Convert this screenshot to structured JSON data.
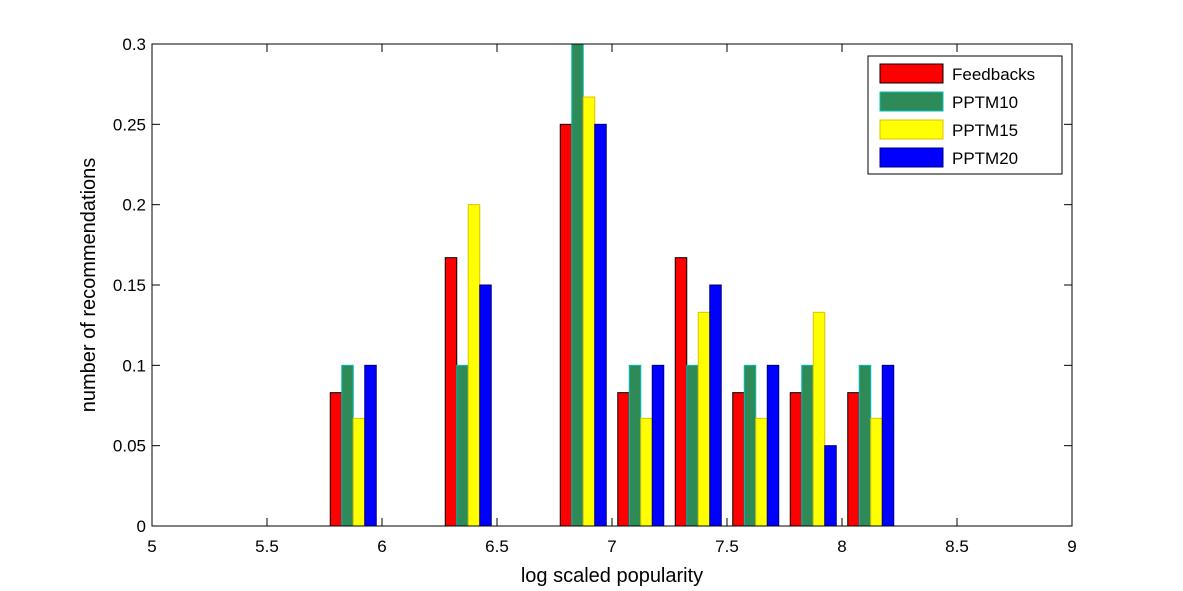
{
  "chart_data": {
    "type": "bar",
    "xlabel": "log scaled popularity",
    "ylabel": "number of recommendations",
    "xlim": [
      5,
      9
    ],
    "ylim": [
      0,
      0.3
    ],
    "x_ticks": [
      "5",
      "5.5",
      "6",
      "6.5",
      "7",
      "7.5",
      "8",
      "8.5",
      "9"
    ],
    "y_ticks": [
      "0",
      "0.05",
      "0.1",
      "0.15",
      "0.2",
      "0.25",
      "0.3"
    ],
    "grid": false,
    "legend_position": "top-right",
    "x": [
      5.125,
      5.375,
      5.625,
      5.875,
      6.125,
      6.375,
      6.625,
      6.875,
      7.125,
      7.375,
      7.625,
      7.875,
      8.125,
      8.375,
      8.625,
      8.875
    ],
    "series": [
      {
        "name": "Feedbacks",
        "color": "#ff0000",
        "edge": "#000000",
        "values": [
          0,
          0,
          0,
          0.083,
          0,
          0.167,
          0,
          0.25,
          0.083,
          0.167,
          0.083,
          0.083,
          0.083,
          0,
          0,
          0
        ]
      },
      {
        "name": "PPTM10",
        "color": "#2e8b57",
        "edge": "#00bfbf",
        "values": [
          0,
          0,
          0,
          0.1,
          0,
          0.1,
          0,
          0.3,
          0.1,
          0.1,
          0.1,
          0.1,
          0.1,
          0,
          0,
          0
        ]
      },
      {
        "name": "PPTM15",
        "color": "#ffff00",
        "edge": "#e0c000",
        "values": [
          0,
          0,
          0,
          0.067,
          0,
          0.2,
          0,
          0.267,
          0.067,
          0.133,
          0.067,
          0.133,
          0.067,
          0,
          0,
          0
        ]
      },
      {
        "name": "PPTM20",
        "color": "#0000ff",
        "edge": "#000080",
        "values": [
          0,
          0,
          0,
          0.1,
          0,
          0.15,
          0,
          0.25,
          0.1,
          0.15,
          0.1,
          0.05,
          0.1,
          0,
          0,
          0
        ]
      }
    ]
  }
}
